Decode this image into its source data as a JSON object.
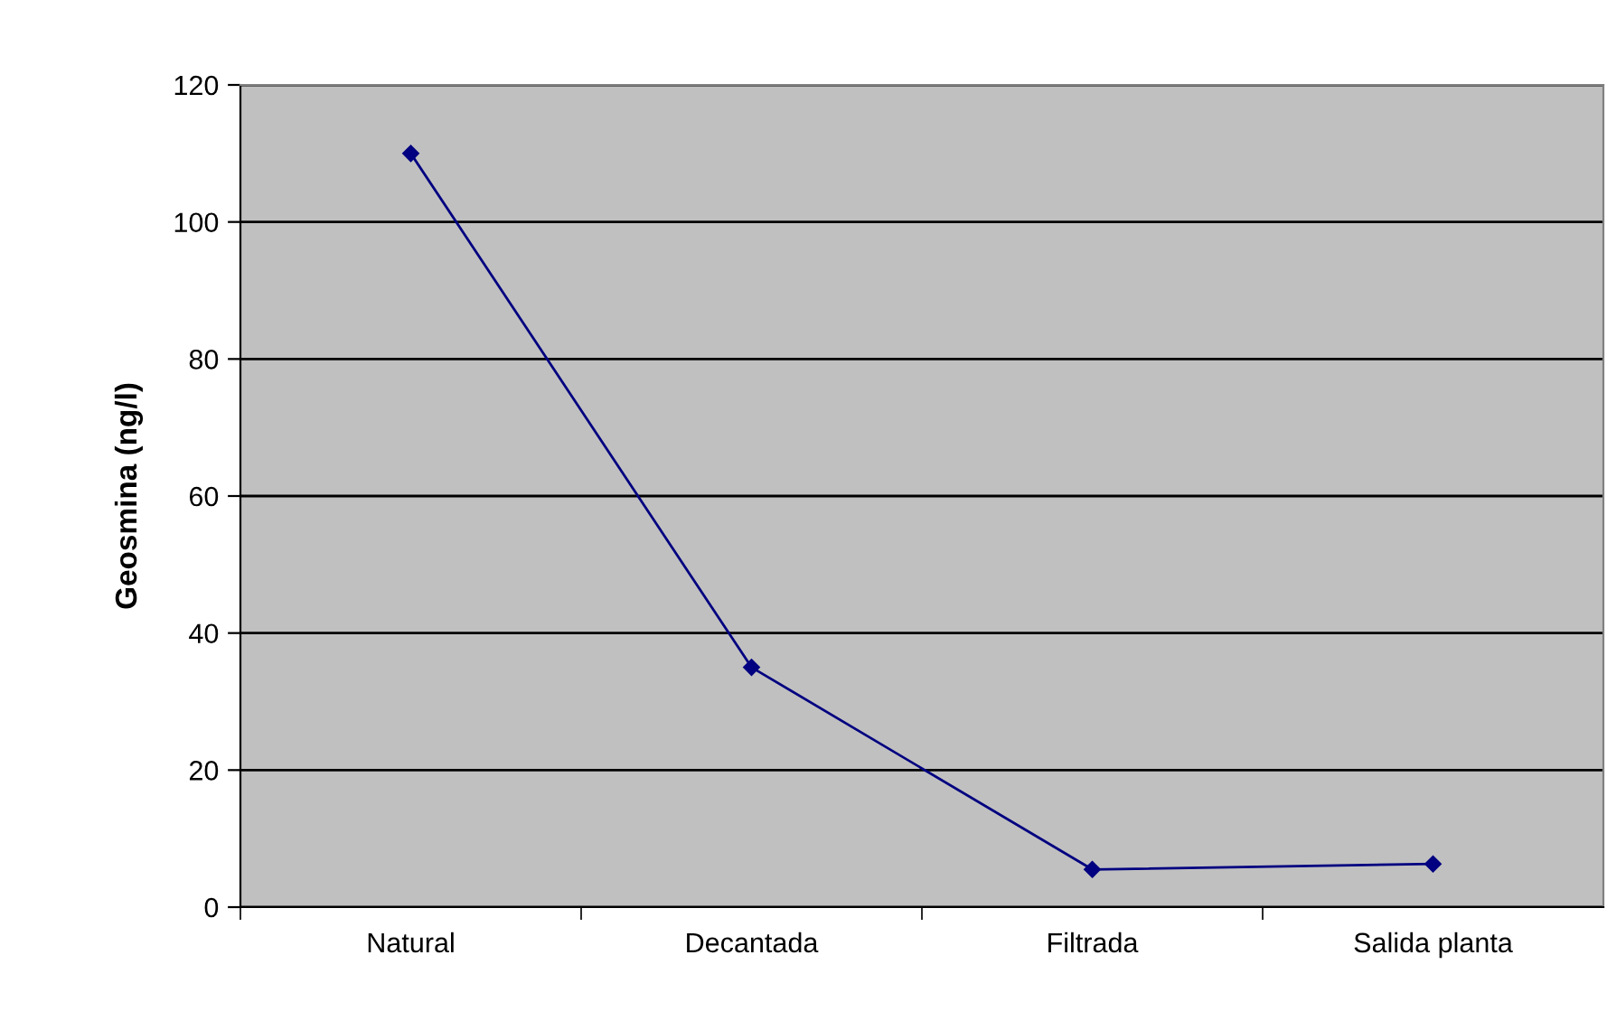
{
  "chart_data": {
    "type": "line",
    "ylabel": "Geosmina (ng/l)",
    "categories": [
      "Natural",
      "Decantada",
      "Filtrada",
      "Salida planta"
    ],
    "series": [
      {
        "color": "#000080",
        "values": [
          110,
          35,
          5.5,
          6.3
        ]
      }
    ],
    "ylim": [
      0,
      120
    ],
    "yticks": [
      0,
      20,
      40,
      60,
      80,
      100,
      120
    ],
    "grid": "y",
    "marker": "diamond",
    "line_style": "solid",
    "legend": false
  }
}
